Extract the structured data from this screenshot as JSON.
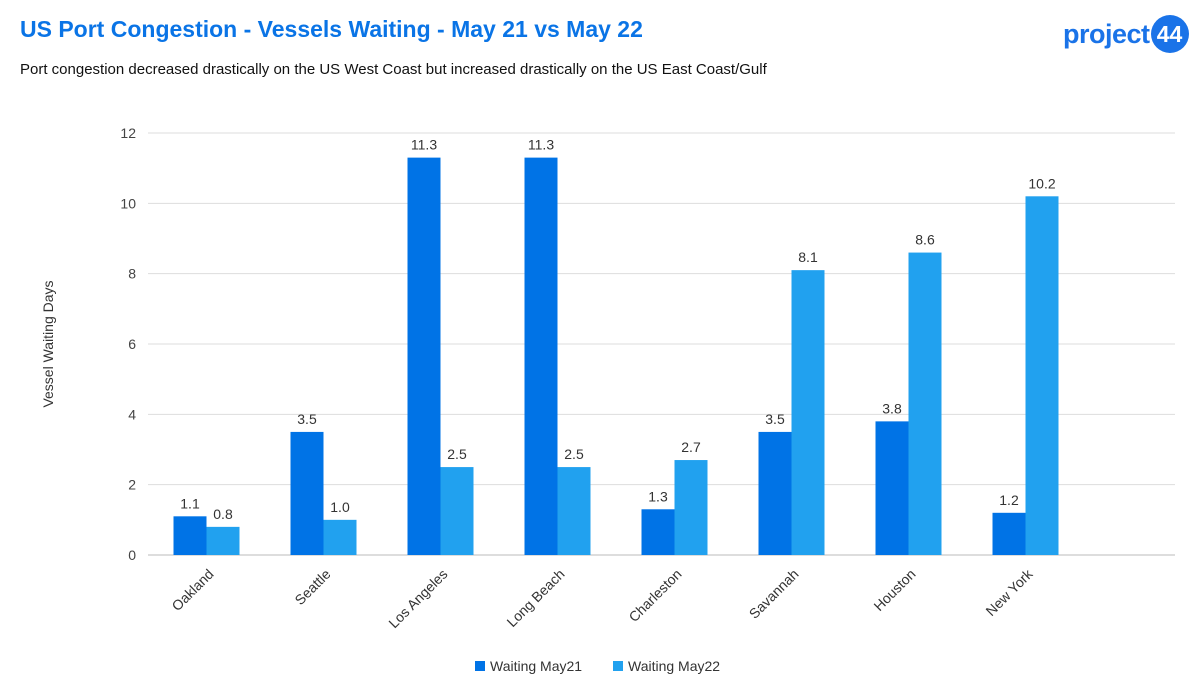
{
  "header": {
    "title": "US Port Congestion - Vessels Waiting - May 21 vs May 22",
    "subtitle": "Port congestion decreased drastically on the US West Coast but increased drastically on the US East Coast/Gulf",
    "logo_text": "project",
    "logo_badge": "44"
  },
  "chart_data": {
    "type": "bar",
    "title": "US Port Congestion - Vessels Waiting - May 21 vs May 22",
    "xlabel": "",
    "ylabel": "Vessel Waiting Days",
    "ylim": [
      0,
      12
    ],
    "yticks": [
      0,
      2,
      4,
      6,
      8,
      10,
      12
    ],
    "grid": true,
    "legend_position": "bottom",
    "categories": [
      "Oakland",
      "Seattle",
      "Los Angeles",
      "Long Beach",
      "Charleston",
      "Savannah",
      "Houston",
      "New York"
    ],
    "series": [
      {
        "name": "Waiting May21",
        "color": "#0073e6",
        "values": [
          1.1,
          3.5,
          11.3,
          11.3,
          1.3,
          3.5,
          3.8,
          1.2
        ],
        "labels": [
          "1.1",
          "3.5",
          "11.3",
          "11.3",
          "1.3",
          "3.5",
          "3.8",
          "1.2"
        ]
      },
      {
        "name": "Waiting May22",
        "color": "#21a1ef",
        "values": [
          0.8,
          1.0,
          2.5,
          2.5,
          2.7,
          8.1,
          8.6,
          10.2
        ],
        "labels": [
          "0.8",
          "1.0",
          "2.5",
          "2.5",
          "2.7",
          "8.1",
          "8.6",
          "10.2"
        ]
      }
    ]
  }
}
